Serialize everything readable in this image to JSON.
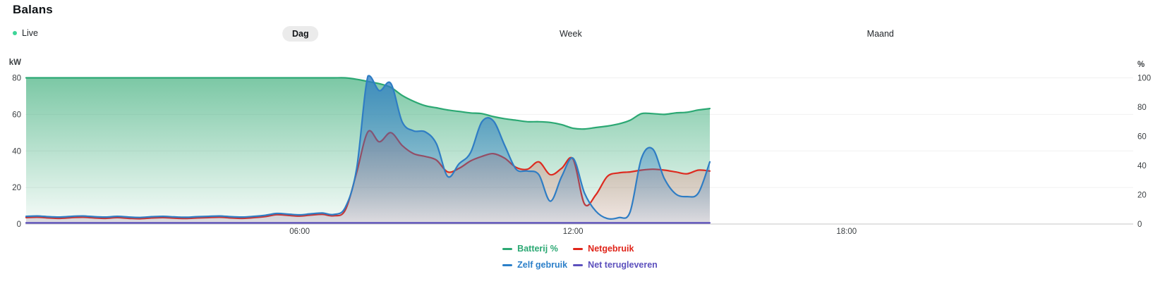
{
  "header": {
    "title": "Balans"
  },
  "live": {
    "label": "Live",
    "dot_color": "#3dd598"
  },
  "tabs": [
    {
      "label": "Dag",
      "selected": true
    },
    {
      "label": "Week",
      "selected": false
    },
    {
      "label": "Maand",
      "selected": false
    }
  ],
  "chart_data": {
    "type": "area",
    "title": "Balans",
    "x_axis": {
      "unit": "time-of-day",
      "range_hours": [
        0,
        24.3
      ],
      "tick_hours": [
        6,
        12,
        18
      ],
      "tick_labels": [
        "06:00",
        "12:00",
        "18:00"
      ]
    },
    "y_axis_left": {
      "label": "kW",
      "min": 0,
      "max": 80,
      "ticks": [
        0,
        20,
        40,
        60,
        80
      ]
    },
    "y_axis_right": {
      "label": "%",
      "min": 0,
      "max": 100,
      "ticks": [
        0,
        20,
        40,
        60,
        80,
        100
      ]
    },
    "grid": "horizontal-only",
    "legend_position": "bottom-center",
    "data_start_time": "00:00",
    "data_end_time": "15:00",
    "sample_interval_minutes": 15,
    "series": [
      {
        "name": "Batterij %",
        "axis": "right",
        "unit": "%",
        "color": "#2ba873",
        "values": [
          100,
          100,
          100,
          100,
          100,
          100,
          100,
          100,
          100,
          100,
          100,
          100,
          100,
          100,
          100,
          100,
          100,
          100,
          100,
          100,
          100,
          100,
          100,
          100,
          100,
          100,
          100,
          100,
          100,
          99,
          97.5,
          96,
          93.5,
          88,
          84,
          81,
          79.5,
          78,
          77,
          76,
          75.5,
          73.5,
          72,
          71,
          70,
          70,
          69.5,
          68,
          65.5,
          65,
          66,
          67,
          68.5,
          71,
          75.5,
          75.5,
          75,
          76,
          76.5,
          78,
          79
        ]
      },
      {
        "name": "Netgebruik",
        "axis": "left",
        "unit": "kW",
        "color": "#dd2b20",
        "values": [
          3.5,
          3.7,
          3.3,
          3.1,
          3.5,
          3.7,
          3.3,
          3.1,
          3.5,
          3.1,
          2.9,
          3.3,
          3.5,
          3.2,
          3,
          3.3,
          3.5,
          3.7,
          3.3,
          3.1,
          3.5,
          4.1,
          5.1,
          4.7,
          4.3,
          4.9,
          5.3,
          4.5,
          7.5,
          28,
          50.5,
          45,
          50,
          43,
          38.5,
          37,
          35,
          28.5,
          30.5,
          34.5,
          37,
          38.5,
          36,
          31,
          30,
          34,
          27,
          30.5,
          35.5,
          11,
          16,
          26,
          28,
          28.5,
          29.5,
          30,
          29.5,
          28.5,
          27.5,
          29.5,
          29
        ]
      },
      {
        "name": "Zelf gebruik",
        "axis": "left",
        "unit": "kW",
        "color": "#2f7dc4",
        "values": [
          4.2,
          4.4,
          4,
          3.8,
          4.2,
          4.4,
          4,
          3.8,
          4.2,
          3.8,
          3.6,
          4,
          4.2,
          3.9,
          3.7,
          4,
          4.2,
          4.4,
          4,
          3.8,
          4.2,
          4.8,
          5.8,
          5.4,
          5,
          5.6,
          6,
          5.2,
          9,
          30,
          81,
          73,
          77,
          56,
          51,
          50.5,
          44,
          26,
          33,
          39,
          56,
          56.5,
          43,
          30,
          29,
          27,
          12.5,
          26,
          36,
          17,
          7,
          3,
          3.5,
          6.5,
          36,
          41,
          25,
          16.5,
          15,
          17,
          34
        ]
      },
      {
        "name": "Net terugleveren",
        "axis": "left",
        "unit": "kW",
        "color": "#5b50ba",
        "values": [
          0.6,
          0.6,
          0.6,
          0.6,
          0.6,
          0.6,
          0.6,
          0.6,
          0.6,
          0.6,
          0.6,
          0.6,
          0.6,
          0.6,
          0.6,
          0.6,
          0.6,
          0.6,
          0.6,
          0.6,
          0.6,
          0.6,
          0.6,
          0.6,
          0.6,
          0.6,
          0.6,
          0.6,
          0.6,
          0.6,
          0.6,
          0.6,
          0.6,
          0.6,
          0.6,
          0.6,
          0.6,
          0.6,
          0.6,
          0.6,
          0.6,
          0.6,
          0.6,
          0.6,
          0.6,
          0.6,
          0.6,
          0.6,
          0.6,
          0.6,
          0.6,
          0.6,
          0.6,
          0.6,
          0.6,
          0.6,
          0.6,
          0.6,
          0.6,
          0.6,
          0.6
        ]
      }
    ]
  },
  "legend": {
    "items": [
      {
        "label": "Batterij %",
        "color": "#2ba873"
      },
      {
        "label": "Netgebruik",
        "color": "#e02419"
      },
      {
        "label": "Zelf gebruik",
        "color": "#2b7fc9"
      },
      {
        "label": "Net terugleveren",
        "color": "#5c50bd"
      }
    ]
  }
}
